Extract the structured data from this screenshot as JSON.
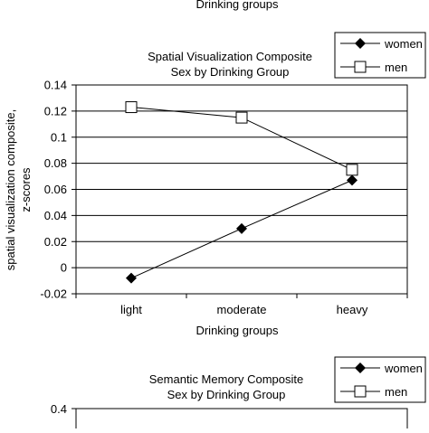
{
  "top_fragment": {
    "xlabel": "Drinking groups"
  },
  "chart_data": [
    {
      "type": "line",
      "title": "Spatial Visualization Composite",
      "subtitle": "Sex by Drinking Group",
      "xlabel": "Drinking groups",
      "ylabel": "spatial visualization composite,",
      "ylabel2": "z-scores",
      "categories": [
        "light",
        "moderate",
        "heavy"
      ],
      "ylim": [
        -0.02,
        0.14
      ],
      "yticks": [
        -0.02,
        0,
        0.02,
        0.04,
        0.06,
        0.08,
        0.1,
        0.12,
        0.14
      ],
      "ytick_labels": [
        "-0.02",
        "0",
        "0.02",
        "0.04",
        "0.06",
        "0.08",
        "0.1",
        "0.12",
        "0.14"
      ],
      "grid": true,
      "legend_placement": "top-right",
      "series": [
        {
          "name": "women",
          "marker": "diamond-filled",
          "values": [
            -0.008,
            0.03,
            0.067
          ]
        },
        {
          "name": "men",
          "marker": "square-open",
          "values": [
            0.123,
            0.115,
            0.075
          ]
        }
      ]
    },
    {
      "type": "line",
      "title": "Semantic Memory Composite",
      "subtitle": "Sex by Drinking Group",
      "ytick_labels": [
        "0.4"
      ],
      "legend_placement": "top-right",
      "series": [
        {
          "name": "women",
          "marker": "diamond-filled"
        },
        {
          "name": "men",
          "marker": "square-open"
        }
      ]
    }
  ]
}
